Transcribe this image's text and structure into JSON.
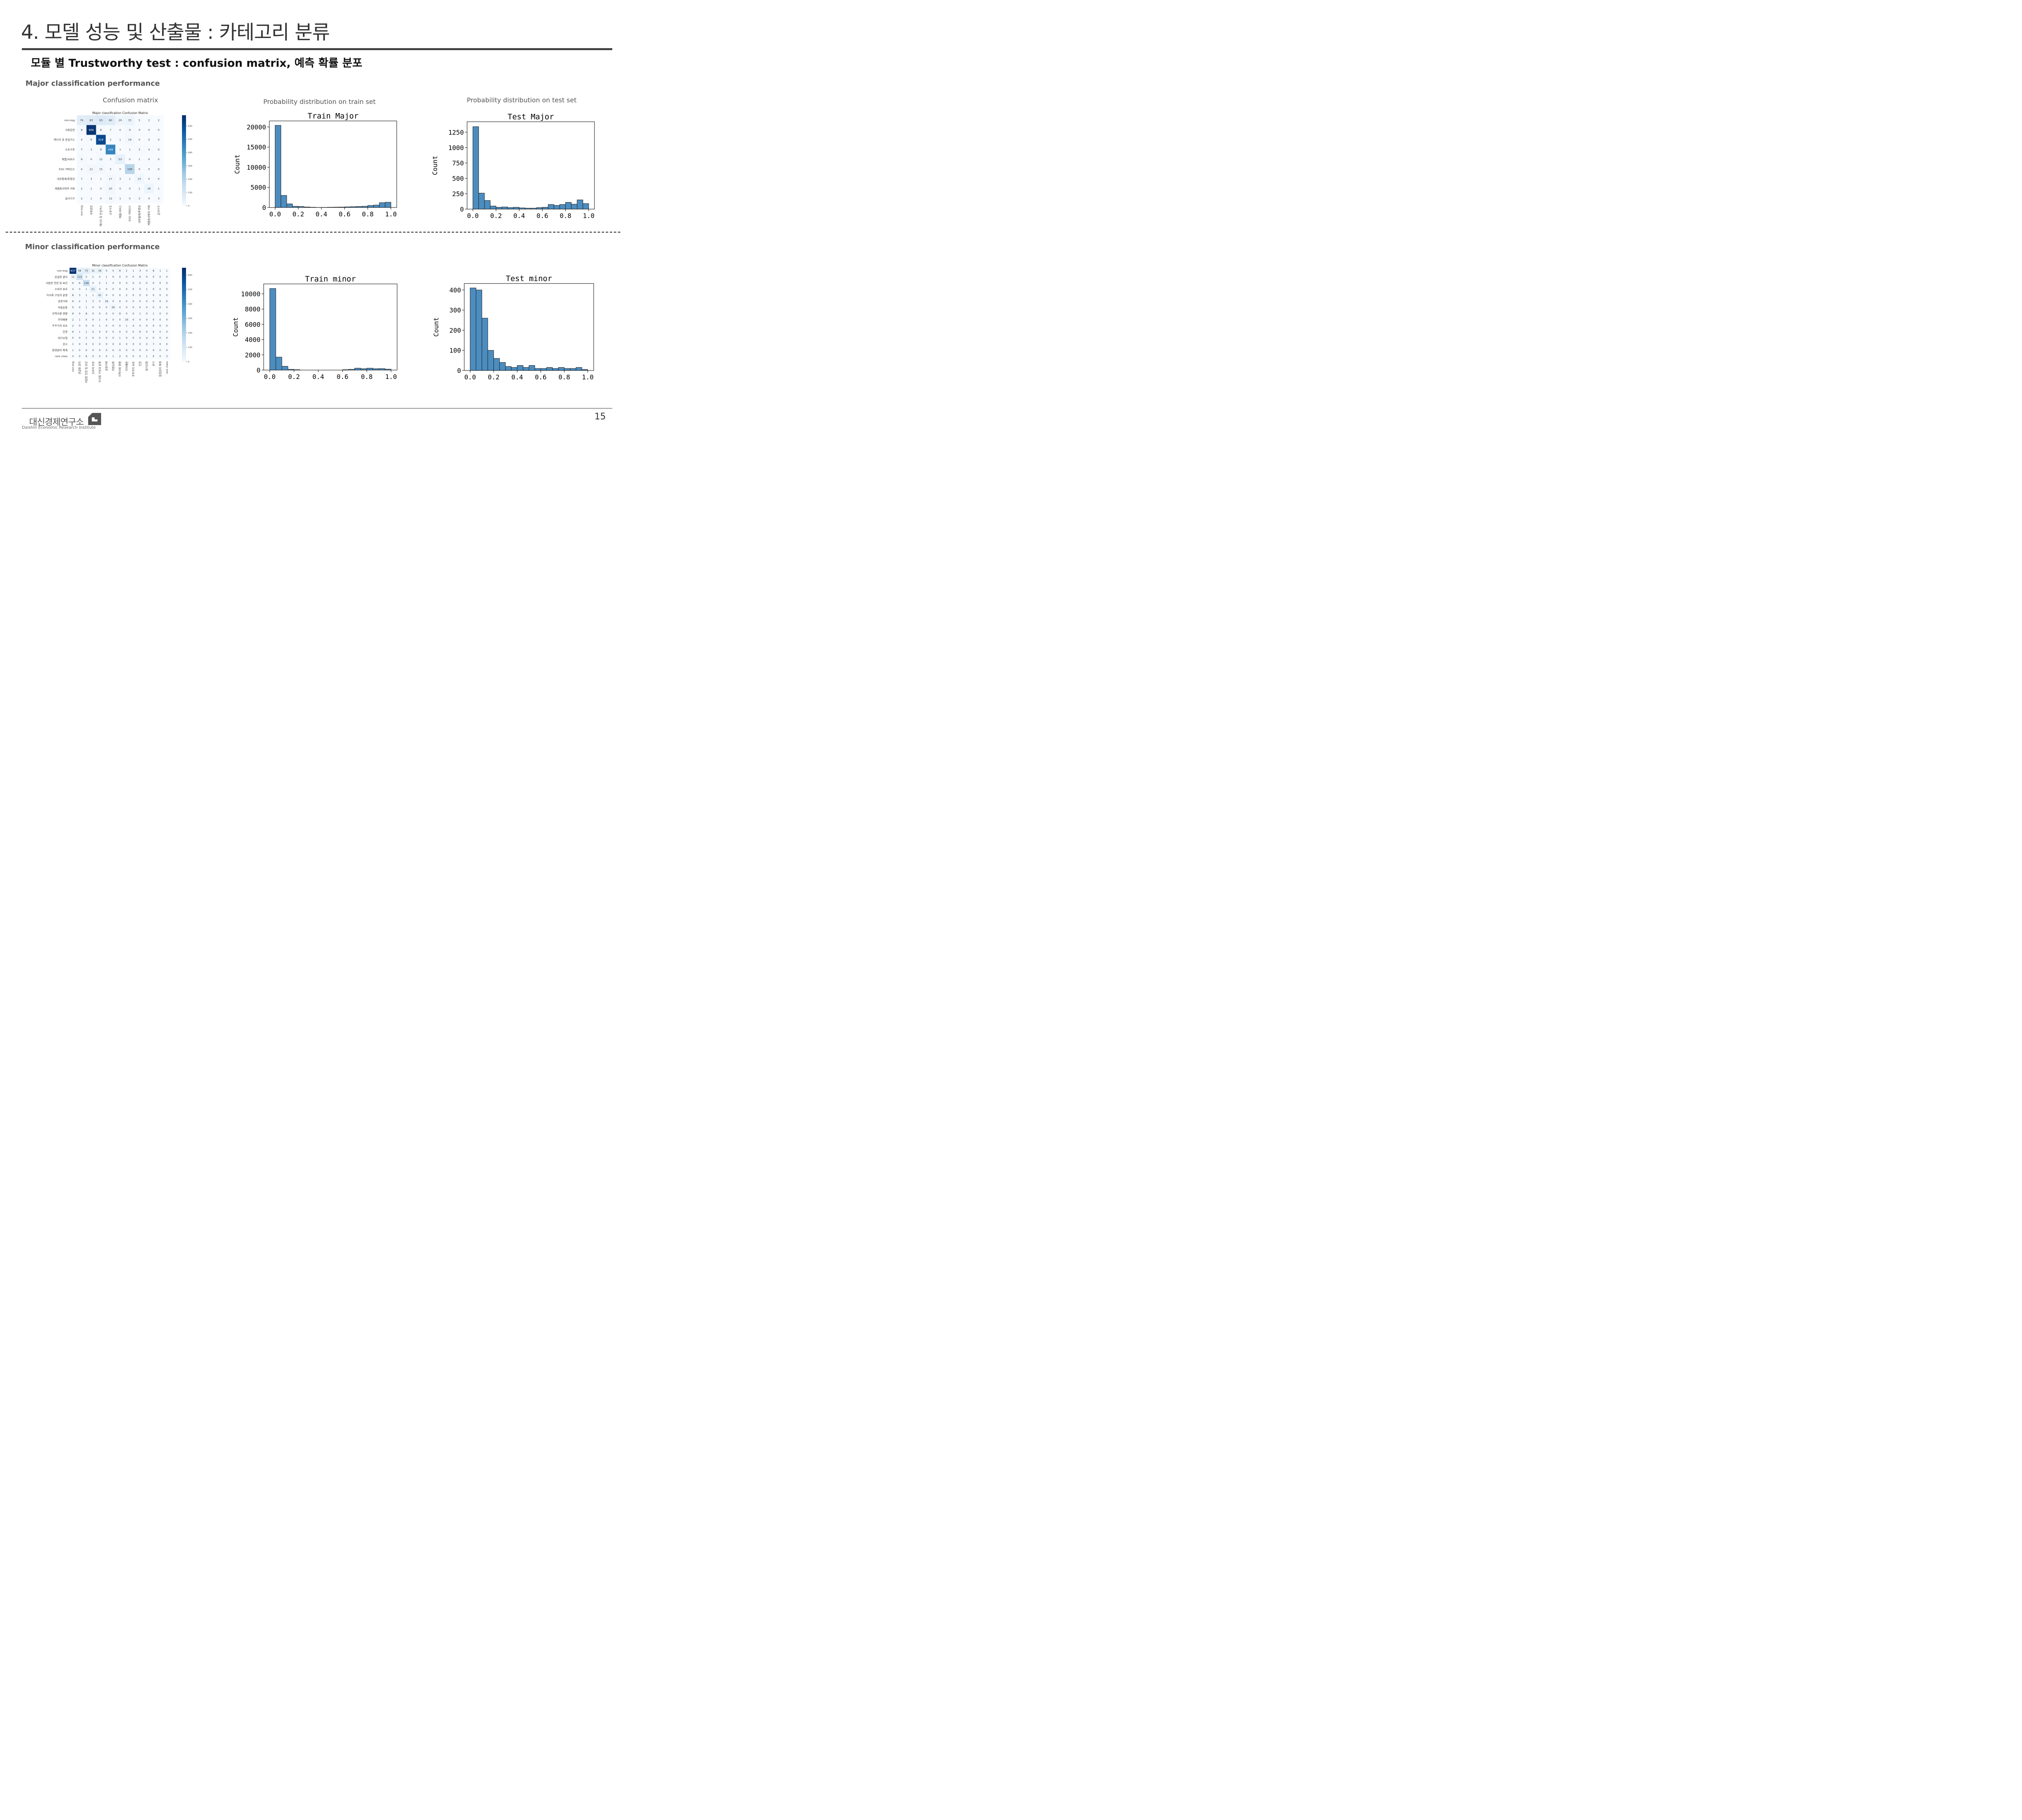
{
  "header": {
    "title": "4. 모델 성능 및 산출물 : 카테고리 분류",
    "subtitle": "모듈 별 Trustworthy test : confusion matrix, 예측 확률 분포"
  },
  "major": {
    "section_label": "Major classification performance",
    "captions": {
      "confusion": "Confusion matrix",
      "train": "Probability distribution on train set",
      "test": "Probability distribution on test set"
    }
  },
  "minor": {
    "section_label": "Minor classification performance"
  },
  "footer": {
    "brand_ko": "대신경제연구소",
    "brand_en": "Daishin Economic Research Institute",
    "page_number": "15"
  },
  "colors": {
    "bar": "#4c8dc0",
    "cmap_max": "#08306b",
    "cmap_min": "#f7fbff"
  },
  "confusion_matrices": [
    {
      "id": "major",
      "title": "Major classification Confusion Matrix",
      "labels": [
        "non-esg",
        "사회공헌",
        "에너지 및 온실가스",
        "소유구조",
        "제품/서비스",
        "ESG 거버넌스",
        "내부통제/투명성",
        "계열회사와의 거래",
        "감사기구"
      ],
      "vmax": 680,
      "colorbar_ticks": [
        0,
        100,
        200,
        300,
        400,
        500,
        600
      ],
      "matrix": [
        [
          76,
          83,
          93,
          80,
          29,
          33,
          5,
          2,
          2
        ],
        [
          8,
          666,
          8,
          7,
          0,
          9,
          0,
          0,
          0
        ],
        [
          4,
          6,
          618,
          2,
          1,
          18,
          0,
          0,
          0
        ],
        [
          7,
          3,
          9,
          456,
          1,
          1,
          3,
          4,
          0
        ],
        [
          9,
          0,
          12,
          3,
          53,
          0,
          1,
          0,
          0
        ],
        [
          4,
          21,
          15,
          5,
          0,
          199,
          0,
          0,
          0
        ],
        [
          7,
          3,
          1,
          17,
          3,
          1,
          23,
          0,
          0
        ],
        [
          2,
          1,
          0,
          20,
          0,
          0,
          1,
          36,
          1
        ],
        [
          2,
          1,
          0,
          12,
          1,
          0,
          3,
          0,
          3
        ]
      ]
    },
    {
      "id": "minor",
      "title": "Minor classification Confusion Matrix",
      "labels": [
        "non-esg",
        "공급망 관리",
        "사업장 안전 및 보건",
        "소비자 보호",
        "이사회 구성과 운영",
        "공정거래",
        "자원순환",
        "지역사회 영향",
        "이익배분",
        "주주가치 보호",
        "인권",
        "대기오염",
        "공시",
        "환경관리 체계",
        "rare class"
      ],
      "vmax": 650,
      "colorbar_ticks": [
        0,
        100,
        200,
        300,
        400,
        500,
        600
      ],
      "matrix": [
        [
          637,
          58,
          73,
          32,
          38,
          5,
          5,
          8,
          2,
          1,
          3,
          0,
          8,
          1,
          1
        ],
        [
          12,
          114,
          5,
          2,
          0,
          1,
          0,
          0,
          0,
          0,
          6,
          0,
          0,
          0,
          0
        ],
        [
          6,
          6,
          149,
          0,
          2,
          1,
          0,
          0,
          0,
          0,
          0,
          0,
          0,
          0,
          0
        ],
        [
          4,
          0,
          1,
          51,
          0,
          0,
          0,
          0,
          0,
          0,
          0,
          1,
          0,
          0,
          0
        ],
        [
          8,
          3,
          1,
          1,
          41,
          0,
          0,
          0,
          2,
          0,
          0,
          0,
          0,
          0,
          0
        ],
        [
          6,
          2,
          1,
          3,
          0,
          18,
          0,
          0,
          0,
          0,
          0,
          0,
          0,
          0,
          0
        ],
        [
          0,
          0,
          1,
          0,
          0,
          0,
          26,
          0,
          0,
          0,
          0,
          0,
          0,
          0,
          0
        ],
        [
          6,
          0,
          8,
          0,
          0,
          0,
          0,
          9,
          0,
          0,
          1,
          0,
          1,
          0,
          0
        ],
        [
          2,
          1,
          0,
          0,
          1,
          0,
          0,
          0,
          16,
          0,
          0,
          0,
          0,
          0,
          0
        ],
        [
          2,
          0,
          0,
          0,
          1,
          0,
          0,
          0,
          1,
          4,
          0,
          0,
          0,
          0,
          0
        ],
        [
          6,
          1,
          1,
          4,
          0,
          0,
          0,
          0,
          0,
          0,
          9,
          0,
          0,
          0,
          0
        ],
        [
          0,
          0,
          2,
          0,
          0,
          0,
          0,
          1,
          0,
          0,
          0,
          4,
          0,
          0,
          0
        ],
        [
          1,
          0,
          0,
          0,
          0,
          0,
          0,
          0,
          0,
          0,
          0,
          0,
          7,
          0,
          0
        ],
        [
          1,
          0,
          0,
          0,
          0,
          0,
          0,
          0,
          0,
          0,
          0,
          0,
          0,
          0,
          0
        ],
        [
          0,
          0,
          6,
          0,
          0,
          0,
          1,
          2,
          0,
          0,
          0,
          1,
          0,
          0,
          3
        ]
      ]
    }
  ],
  "chart_data": [
    {
      "id": "train-major",
      "type": "bar",
      "title": "Train Major",
      "xlabel": "",
      "ylabel": "Count",
      "xlim": [
        -0.05,
        1.05
      ],
      "ylim": [
        0,
        21500
      ],
      "x_ticks": [
        0.0,
        0.2,
        0.4,
        0.6,
        0.8,
        1.0
      ],
      "y_ticks": [
        0,
        5000,
        10000,
        15000,
        20000
      ],
      "bin_width": 0.05,
      "bin_starts": [
        0.0,
        0.05,
        0.1,
        0.15,
        0.2,
        0.25,
        0.3,
        0.35,
        0.4,
        0.45,
        0.5,
        0.55,
        0.6,
        0.65,
        0.7,
        0.75,
        0.8,
        0.85,
        0.9,
        0.95
      ],
      "values": [
        20400,
        3000,
        900,
        300,
        250,
        120,
        60,
        20,
        30,
        60,
        80,
        100,
        150,
        200,
        250,
        300,
        500,
        600,
        1200,
        1300
      ]
    },
    {
      "id": "test-major",
      "type": "bar",
      "title": "Test Major",
      "xlabel": "",
      "ylabel": "Count",
      "xlim": [
        -0.05,
        1.05
      ],
      "ylim": [
        0,
        1420
      ],
      "x_ticks": [
        0.0,
        0.2,
        0.4,
        0.6,
        0.8,
        1.0
      ],
      "y_ticks": [
        0,
        250,
        500,
        750,
        1000,
        1250
      ],
      "bin_width": 0.05,
      "bin_starts": [
        0.0,
        0.05,
        0.1,
        0.15,
        0.2,
        0.25,
        0.3,
        0.35,
        0.4,
        0.45,
        0.5,
        0.55,
        0.6,
        0.65,
        0.7,
        0.75,
        0.8,
        0.85,
        0.9,
        0.95
      ],
      "values": [
        1340,
        260,
        140,
        50,
        30,
        35,
        25,
        30,
        20,
        15,
        15,
        25,
        30,
        75,
        60,
        75,
        110,
        80,
        150,
        90
      ]
    },
    {
      "id": "train-minor",
      "type": "bar",
      "title": "Train minor",
      "xlabel": "",
      "ylabel": "Count",
      "xlim": [
        -0.05,
        1.05
      ],
      "ylim": [
        0,
        11300
      ],
      "x_ticks": [
        0.0,
        0.2,
        0.4,
        0.6,
        0.8,
        1.0
      ],
      "y_ticks": [
        0,
        2000,
        4000,
        6000,
        8000,
        10000
      ],
      "bin_width": 0.05,
      "bin_starts": [
        0.0,
        0.05,
        0.1,
        0.15,
        0.2,
        0.25,
        0.3,
        0.35,
        0.4,
        0.45,
        0.5,
        0.55,
        0.6,
        0.65,
        0.7,
        0.75,
        0.8,
        0.85,
        0.9,
        0.95
      ],
      "values": [
        10700,
        1700,
        500,
        100,
        50,
        0,
        0,
        0,
        0,
        0,
        0,
        0,
        50,
        100,
        250,
        180,
        250,
        180,
        200,
        120
      ]
    },
    {
      "id": "test-minor",
      "type": "bar",
      "title": "Test minor",
      "xlabel": "",
      "ylabel": "Count",
      "xlim": [
        -0.05,
        1.05
      ],
      "ylim": [
        0,
        432
      ],
      "x_ticks": [
        0.0,
        0.2,
        0.4,
        0.6,
        0.8,
        1.0
      ],
      "y_ticks": [
        0,
        100,
        200,
        300,
        400
      ],
      "bin_width": 0.05,
      "bin_starts": [
        0.0,
        0.05,
        0.1,
        0.15,
        0.2,
        0.25,
        0.3,
        0.35,
        0.4,
        0.45,
        0.5,
        0.55,
        0.6,
        0.65,
        0.7,
        0.75,
        0.8,
        0.85,
        0.9,
        0.95
      ],
      "values": [
        410,
        400,
        260,
        100,
        60,
        40,
        20,
        15,
        25,
        15,
        25,
        10,
        10,
        15,
        10,
        15,
        10,
        10,
        15,
        5
      ]
    }
  ]
}
